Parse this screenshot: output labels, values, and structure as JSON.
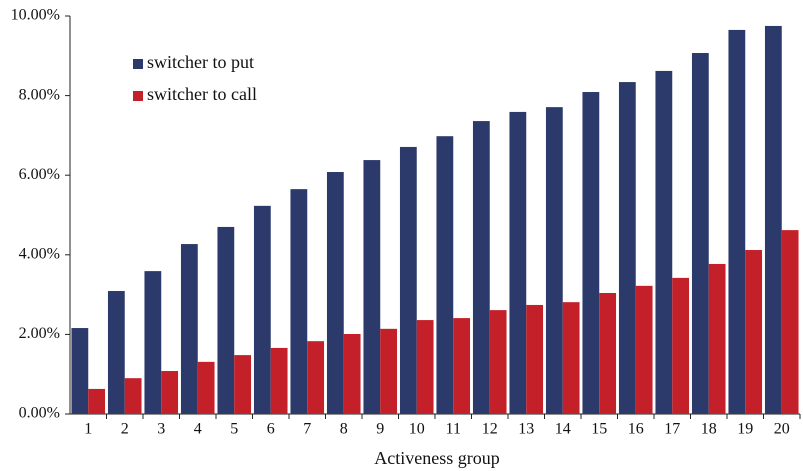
{
  "chart_data": {
    "type": "bar",
    "x_label": "Activeness group",
    "categories": [
      "1",
      "2",
      "3",
      "4",
      "5",
      "6",
      "7",
      "8",
      "9",
      "10",
      "11",
      "12",
      "13",
      "14",
      "15",
      "16",
      "17",
      "18",
      "19",
      "20"
    ],
    "series": [
      {
        "name": "switcher to put",
        "color": "#2b3a6b",
        "values": [
          2.16,
          3.09,
          3.59,
          4.27,
          4.7,
          5.23,
          5.65,
          6.08,
          6.38,
          6.71,
          6.98,
          7.36,
          7.59,
          7.71,
          8.09,
          8.34,
          8.62,
          9.07,
          9.65,
          9.75
        ]
      },
      {
        "name": "switcher to call",
        "color": "#c4202a",
        "values": [
          0.63,
          0.9,
          1.08,
          1.31,
          1.48,
          1.66,
          1.83,
          2.01,
          2.14,
          2.36,
          2.41,
          2.61,
          2.74,
          2.81,
          3.04,
          3.22,
          3.42,
          3.77,
          4.12,
          4.62
        ]
      }
    ],
    "ylim": [
      0,
      10
    ],
    "yticks": [
      {
        "value": 0,
        "label": "0.00%"
      },
      {
        "value": 2,
        "label": "2.00%"
      },
      {
        "value": 4,
        "label": "4.00%"
      },
      {
        "value": 6,
        "label": "6.00%"
      },
      {
        "value": 8,
        "label": "8.00%"
      },
      {
        "value": 10,
        "label": "10.00%"
      }
    ],
    "legend": "upper left",
    "grid": false
  }
}
